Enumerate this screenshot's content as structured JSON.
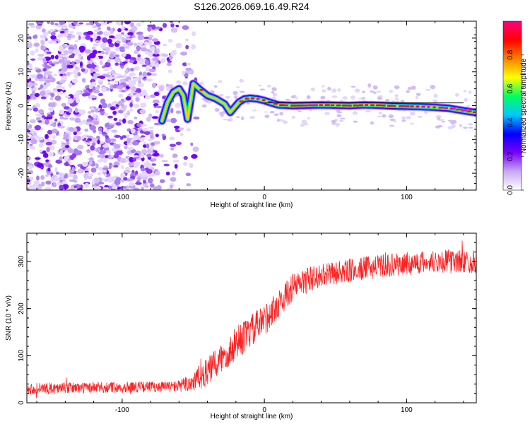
{
  "chart_data": [
    {
      "type": "heatmap",
      "title": "S126.2026.069.16.49.R24",
      "xlabel": "Height of straight line (km)",
      "ylabel": "Frequency (Hz)",
      "xlim": [
        -167,
        149
      ],
      "ylim": [
        -25,
        25
      ],
      "x_ticks": [
        -100,
        0,
        100
      ],
      "y_ticks": [
        -20,
        -10,
        0,
        10,
        20
      ],
      "colorbar": {
        "label": "Normalized spectral amplitude",
        "range": [
          0,
          1
        ],
        "ticks": [
          "0.0",
          "0.2",
          "0.4",
          "0.6",
          "0.8"
        ],
        "colormap": [
          "#ffffff",
          "#c8a8f0",
          "#7a00ff",
          "#0000ff",
          "#00c8ff",
          "#00ff60",
          "#ffff00",
          "#ff8000",
          "#ff0000",
          "#ff0080"
        ]
      },
      "ridge": {
        "x": [
          -72,
          -68,
          -64,
          -60,
          -57,
          -54,
          -50,
          -46,
          -40,
          -34,
          -28,
          -24,
          -22,
          -18,
          -14,
          -10,
          -5,
          0,
          5,
          10,
          20,
          30,
          40,
          50,
          60,
          70,
          80,
          90,
          100,
          110,
          120,
          130,
          140,
          148
        ],
        "y": [
          -4.5,
          1.0,
          4.0,
          5.0,
          3.0,
          -4.0,
          6.5,
          5.0,
          3.0,
          2.0,
          0.5,
          -2.0,
          -1.0,
          1.0,
          2.0,
          2.2,
          2.0,
          1.5,
          0.8,
          0.2,
          0.0,
          0.1,
          0.2,
          0.1,
          0.0,
          0.2,
          0.1,
          -0.1,
          -0.2,
          -0.3,
          -0.5,
          -0.8,
          -1.5,
          -2.0
        ]
      }
    },
    {
      "type": "line",
      "xlabel": "Height of straight line (km)",
      "ylabel": "SNR (10 * v/v)",
      "xlim": [
        -167,
        149
      ],
      "ylim": [
        0,
        360
      ],
      "x_ticks": [
        -100,
        0,
        100
      ],
      "y_ticks": [
        0,
        100,
        200,
        300
      ],
      "series": [
        {
          "name": "SNR",
          "color": "#ff2020",
          "trend_x": [
            -167,
            -60,
            -50,
            -40,
            -30,
            -20,
            -10,
            0,
            10,
            20,
            30,
            40,
            60,
            80,
            100,
            120,
            149
          ],
          "trend_y": [
            30,
            35,
            45,
            65,
            95,
            125,
            150,
            175,
            210,
            245,
            260,
            270,
            280,
            290,
            295,
            300,
            300
          ],
          "noise_amplitude": [
            12,
            12,
            25,
            30,
            35,
            35,
            35,
            35,
            30,
            30,
            28,
            25,
            25,
            25,
            25,
            25,
            25
          ]
        }
      ]
    }
  ]
}
